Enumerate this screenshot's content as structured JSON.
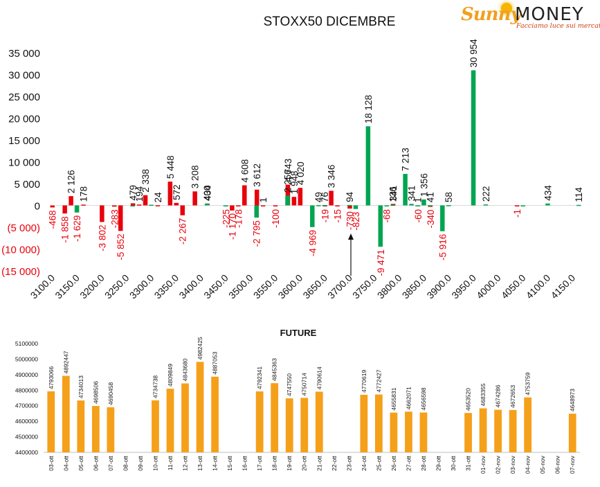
{
  "logo": {
    "brand_a": "Sunny",
    "brand_b": "MONEY",
    "tagline": "Facciamo luce sui mercati"
  },
  "colors": {
    "positive": "#00a550",
    "negative": "#e8000b",
    "future_bar": "#f5a01a",
    "text": "#000000",
    "neg_label": "#e8000b"
  },
  "chart_data": [
    {
      "type": "bar",
      "title": "STOXX50 DICEMBRE",
      "x_ticks": [
        "3100.0",
        "3150.0",
        "3200.0",
        "3250.0",
        "3300.0",
        "3350.0",
        "3400.0",
        "3450.0",
        "3500.0",
        "3550.0",
        "3600.0",
        "3650.0",
        "3700.0",
        "3750.0",
        "3800.0",
        "3850.0",
        "3900.0",
        "3950.0",
        "4000.0",
        "4050.0",
        "4100.0",
        "4150.0"
      ],
      "y_ticks": [
        "35 000",
        "30 000",
        "25 000",
        "20 000",
        "15 000",
        "10 000",
        "5 000",
        "0",
        "(5 000)",
        "(10 000)",
        "(15 000)"
      ],
      "ylim": [
        -15000,
        35000
      ],
      "annotation": "arrow at 3700.0",
      "series": [
        {
          "values": [
            {
              "strike": 3100,
              "value": -468,
              "label": "-468"
            },
            {
              "strike": 3125,
              "value": -1858,
              "label": "-1 858"
            },
            {
              "strike": 3137.5,
              "value": 2126,
              "label": "2 126"
            },
            {
              "strike": 3162.5,
              "value": 178,
              "label": "178"
            },
            {
              "strike": 3200,
              "value": -3802,
              "label": "-3 802"
            },
            {
              "strike": 3225,
              "value": -283,
              "label": "-283"
            },
            {
              "strike": 3237.5,
              "value": -5852,
              "label": "-5 852"
            },
            {
              "strike": 3262.5,
              "value": 479,
              "label": "479"
            },
            {
              "strike": 3275,
              "value": 194,
              "label": "194"
            },
            {
              "strike": 3287.5,
              "value": 2338,
              "label": "2 338"
            },
            {
              "strike": 3312.5,
              "value": 24,
              "label": "24"
            },
            {
              "strike": 3337.5,
              "value": 5448,
              "label": "5 448"
            },
            {
              "strike": 3350,
              "value": 572,
              "label": "572"
            },
            {
              "strike": 3362.5,
              "value": -2267,
              "label": "-2 267"
            },
            {
              "strike": 3387.5,
              "value": 3208,
              "label": "3 208"
            },
            {
              "strike": 3412.5,
              "value": 434,
              "label": "434"
            },
            {
              "strike": 3450,
              "value": -225,
              "label": "-225"
            },
            {
              "strike": 3462.5,
              "value": -1170,
              "label": "-1 170"
            },
            {
              "strike": 3475,
              "value": -178,
              "label": "-178"
            },
            {
              "strike": 3487.5,
              "value": 4608,
              "label": "4 608"
            },
            {
              "strike": 3512.5,
              "value": 3612,
              "label": "3 612"
            },
            {
              "strike": 3525,
              "value": 1,
              "label": "1"
            },
            {
              "strike": 3550,
              "value": -100,
              "label": "-100"
            },
            {
              "strike": 3575,
              "value": 4743,
              "label": "4 743"
            },
            {
              "strike": 3587.5,
              "value": 1948,
              "label": "1 948"
            },
            {
              "strike": 3600,
              "value": 4020,
              "label": "4 020"
            },
            {
              "strike": 3650,
              "value": -19,
              "label": "-19"
            },
            {
              "strike": 3662.5,
              "value": 3346,
              "label": "3 346"
            },
            {
              "strike": 3675,
              "value": -15,
              "label": "-15"
            },
            {
              "strike": 3700,
              "value": -730,
              "label": "-730"
            },
            {
              "strike": 3787.5,
              "value": 341,
              "label": "341"
            },
            {
              "strike": 3837.5,
              "value": -60,
              "label": "-60"
            },
            {
              "strike": 3862.5,
              "value": -340,
              "label": "-340"
            },
            {
              "strike": 4037.5,
              "value": -1,
              "label": "-1"
            }
          ]
        },
        {
          "values": [
            {
              "strike": 3137.5,
              "value": -1629,
              "label": "-1 629"
            },
            {
              "strike": 3250,
              "value": 0,
              "label": ""
            },
            {
              "strike": 3287.5,
              "value": 150,
              "label": ""
            },
            {
              "strike": 3400,
              "value": 400,
              "label": "400"
            },
            {
              "strike": 3437.5,
              "value": -20,
              "label": ""
            },
            {
              "strike": 3500,
              "value": -2795,
              "label": "-2 795"
            },
            {
              "strike": 3562.5,
              "value": 2256,
              "label": "2 256"
            },
            {
              "strike": 3612.5,
              "value": -4969,
              "label": "-4 969"
            },
            {
              "strike": 3625,
              "value": 49,
              "label": "49"
            },
            {
              "strike": 3637.5,
              "value": 76,
              "label": "76"
            },
            {
              "strike": 3687.5,
              "value": 94,
              "label": "94"
            },
            {
              "strike": 3700,
              "value": -823,
              "label": "-823"
            },
            {
              "strike": 3725,
              "value": 18128,
              "label": "18 128"
            },
            {
              "strike": 3750,
              "value": -9471,
              "label": "-9 471"
            },
            {
              "strike": 3762.5,
              "value": -68,
              "label": "-68"
            },
            {
              "strike": 3775,
              "value": 136,
              "label": "136"
            },
            {
              "strike": 3800,
              "value": 7213,
              "label": "7 213"
            },
            {
              "strike": 3812.5,
              "value": 341,
              "label": "341"
            },
            {
              "strike": 3825,
              "value": 1,
              "label": "1"
            },
            {
              "strike": 3837.5,
              "value": 1356,
              "label": "1 356"
            },
            {
              "strike": 3850,
              "value": 41,
              "label": "41"
            },
            {
              "strike": 3875,
              "value": -5916,
              "label": "-5 916"
            },
            {
              "strike": 3887.5,
              "value": 58,
              "label": "58"
            },
            {
              "strike": 3937.5,
              "value": 30954,
              "label": "30 954"
            },
            {
              "strike": 3962.5,
              "value": 222,
              "label": "222"
            },
            {
              "strike": 4037.5,
              "value": -10,
              "label": ""
            },
            {
              "strike": 4087.5,
              "value": 434,
              "label": "434"
            },
            {
              "strike": 4150,
              "value": 114,
              "label": "114"
            }
          ]
        }
      ]
    },
    {
      "type": "bar",
      "title": "FUTURE",
      "ylim": [
        4400000,
        5100000
      ],
      "y_ticks": [
        "5100000",
        "5000000",
        "4900000",
        "4800000",
        "4700000",
        "4600000",
        "4500000",
        "4400000"
      ],
      "categories": [
        "03-ott",
        "04-ott",
        "05-ott",
        "06-ott",
        "07-ott",
        "08-ott",
        "09-ott",
        "10-ott",
        "11-ott",
        "12-ott",
        "13-ott",
        "14-ott",
        "15-ott",
        "16-ott",
        "17-ott",
        "18-ott",
        "19-ott",
        "20-ott",
        "21-ott",
        "22-ott",
        "23-ott",
        "24-ott",
        "25-ott",
        "26-ott",
        "27-ott",
        "28-ott",
        "29-ott",
        "30-ott",
        "31-ott",
        "01-nov",
        "02-nov",
        "03-nov",
        "04-nov",
        "05-nov",
        "06-nov",
        "07-nov"
      ],
      "values": [
        4793066,
        4892447,
        4734013,
        4698506,
        4690458,
        null,
        null,
        4734738,
        4809849,
        4843680,
        4982425,
        4887053,
        null,
        null,
        4792341,
        4845363,
        4747550,
        4750714,
        4790614,
        null,
        null,
        4770619,
        4772427,
        4655831,
        4662071,
        4656598,
        null,
        null,
        4653520,
        4683355,
        4674286,
        4672653,
        4753759,
        null,
        null,
        4648973
      ]
    }
  ]
}
